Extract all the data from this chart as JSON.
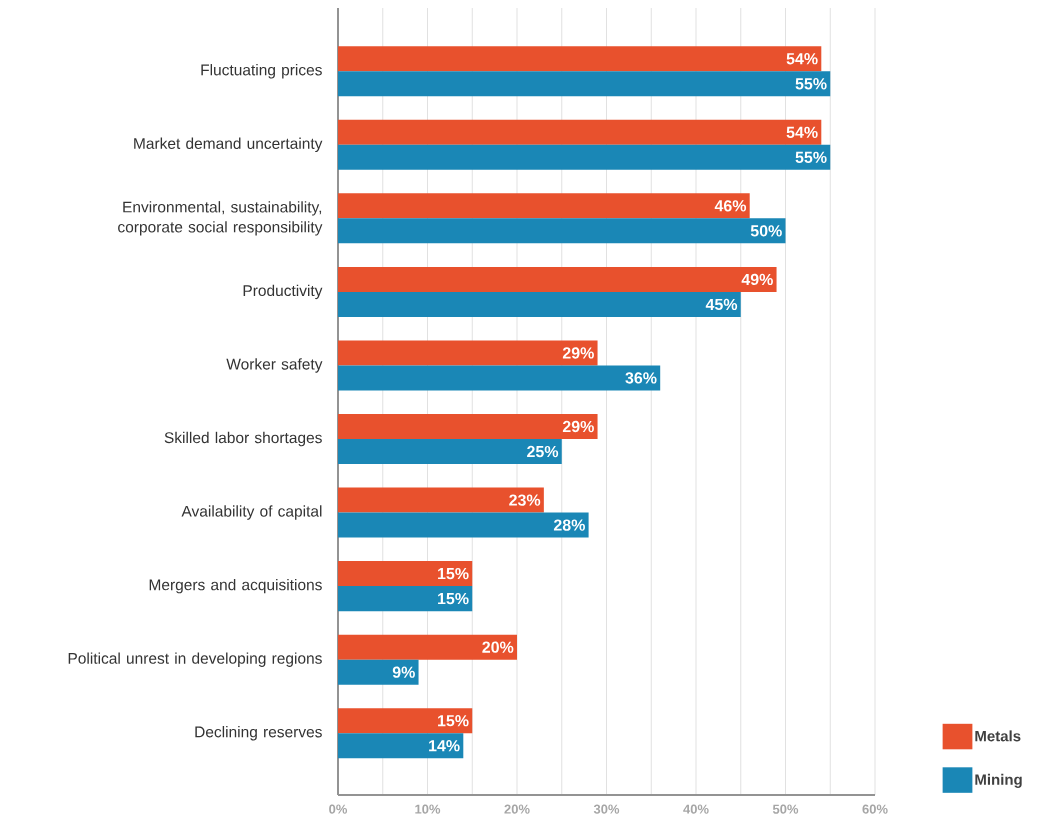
{
  "chart_data": {
    "type": "bar",
    "orientation": "horizontal",
    "categories": [
      "Fluctuating prices",
      "Market demand uncertainty",
      "Environmental, sustainability, corporate social responsibility",
      "Productivity",
      "Worker safety",
      "Skilled labor shortages",
      "Availability of capital",
      "Mergers and acquisitions",
      "Political unrest in developing regions",
      "Declining reserves"
    ],
    "series": [
      {
        "name": "Metals",
        "color": "#e8512d",
        "values": [
          54,
          54,
          46,
          49,
          29,
          29,
          23,
          15,
          20,
          15
        ],
        "value_labels": [
          "54%",
          "54%",
          "46%",
          "49%",
          "29%",
          "29%",
          "23%",
          "15%",
          "20%",
          "15%"
        ]
      },
      {
        "name": "Mining",
        "color": "#1a87b6",
        "values": [
          55,
          55,
          50,
          45,
          36,
          25,
          28,
          15,
          9,
          14
        ],
        "value_labels": [
          "55%",
          "55%",
          "50%",
          "45%",
          "36%",
          "25%",
          "28%",
          "15%",
          "9%",
          "14%"
        ]
      }
    ],
    "xlim": [
      0,
      60
    ],
    "xticks": [
      {
        "value": 0,
        "label": "0%"
      },
      {
        "value": 5,
        "label": null
      },
      {
        "value": 10,
        "label": "10%"
      },
      {
        "value": 15,
        "label": null
      },
      {
        "value": 20,
        "label": "20%"
      },
      {
        "value": 25,
        "label": null
      },
      {
        "value": 30,
        "label": "30%"
      },
      {
        "value": 35,
        "label": null
      },
      {
        "value": 40,
        "label": "40%"
      },
      {
        "value": 45,
        "label": null
      },
      {
        "value": 50,
        "label": "50%"
      },
      {
        "value": 55,
        "label": null
      },
      {
        "value": 60,
        "label": "60%"
      }
    ],
    "grid": "x",
    "legend": "bottom right"
  }
}
